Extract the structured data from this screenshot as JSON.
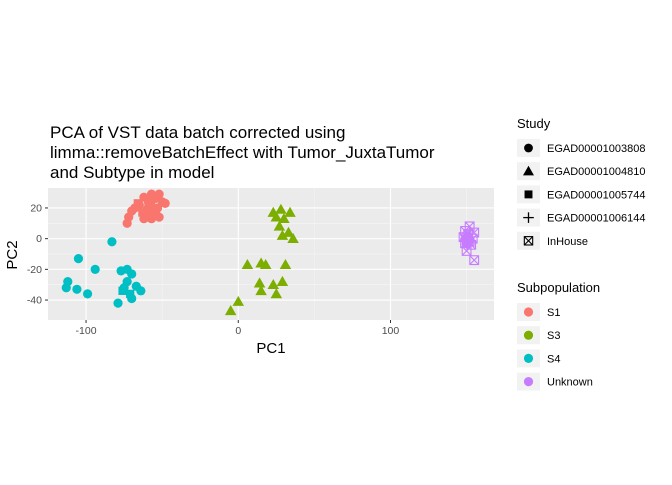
{
  "chart_data": {
    "type": "scatter",
    "title": "PCA of VST data batch corrected using\nlimma::removeBatchEffect with Tumor_JuxtaTumor\nand Subtype in model",
    "xlabel": "PC1",
    "ylabel": "PC2",
    "xlim": [
      -125,
      168
    ],
    "ylim": [
      -53,
      33
    ],
    "xticks": [
      -100,
      0,
      100
    ],
    "yticks": [
      -40,
      -20,
      0,
      20
    ],
    "grid": true,
    "legend_position": "right",
    "legends": [
      {
        "title": "Study",
        "kind": "shape",
        "items": [
          {
            "label": "EGAD00001003808",
            "shape": "circle"
          },
          {
            "label": "EGAD00001004810",
            "shape": "triangle"
          },
          {
            "label": "EGAD00001005744",
            "shape": "square"
          },
          {
            "label": "EGAD00001006144",
            "shape": "plus"
          },
          {
            "label": "InHouse",
            "shape": "boxcross"
          }
        ]
      },
      {
        "title": "Subpopulation",
        "kind": "color",
        "items": [
          {
            "label": "S1",
            "color": "#F8766D"
          },
          {
            "label": "S3",
            "color": "#7CAE00"
          },
          {
            "label": "S4",
            "color": "#00BFC4"
          },
          {
            "label": "Unknown",
            "color": "#C77CFF"
          }
        ]
      }
    ],
    "series": [
      {
        "name": "S1",
        "color": "#F8766D",
        "points": [
          {
            "x": -57,
            "y": 29,
            "shape": "circle"
          },
          {
            "x": -52,
            "y": 29,
            "shape": "circle"
          },
          {
            "x": -62,
            "y": 27,
            "shape": "circle"
          },
          {
            "x": -55,
            "y": 26,
            "shape": "circle"
          },
          {
            "x": -59,
            "y": 24,
            "shape": "circle"
          },
          {
            "x": -50,
            "y": 24,
            "shape": "circle"
          },
          {
            "x": -65,
            "y": 22,
            "shape": "circle"
          },
          {
            "x": -57,
            "y": 21,
            "shape": "circle"
          },
          {
            "x": -53,
            "y": 20,
            "shape": "circle"
          },
          {
            "x": -60,
            "y": 19,
            "shape": "circle"
          },
          {
            "x": -70,
            "y": 18,
            "shape": "circle"
          },
          {
            "x": -56,
            "y": 17,
            "shape": "circle"
          },
          {
            "x": -62,
            "y": 16,
            "shape": "circle"
          },
          {
            "x": -58,
            "y": 15,
            "shape": "circle"
          },
          {
            "x": -72,
            "y": 14,
            "shape": "circle"
          },
          {
            "x": -52,
            "y": 14,
            "shape": "circle"
          },
          {
            "x": -62,
            "y": 13,
            "shape": "circle"
          },
          {
            "x": -57,
            "y": 13,
            "shape": "circle"
          },
          {
            "x": -73,
            "y": 10,
            "shape": "circle"
          },
          {
            "x": -48,
            "y": 23,
            "shape": "circle"
          },
          {
            "x": -66,
            "y": 23,
            "shape": "square"
          },
          {
            "x": -59,
            "y": 22,
            "shape": "square"
          },
          {
            "x": -54,
            "y": 18,
            "shape": "square"
          },
          {
            "x": -63,
            "y": 17,
            "shape": "square"
          },
          {
            "x": -60,
            "y": 14,
            "shape": "square"
          },
          {
            "x": -55,
            "y": 27,
            "shape": "square"
          },
          {
            "x": -68,
            "y": 20,
            "shape": "circle"
          }
        ]
      },
      {
        "name": "S3",
        "color": "#7CAE00",
        "points": [
          {
            "x": 28,
            "y": 19,
            "shape": "triangle"
          },
          {
            "x": 23,
            "y": 17,
            "shape": "triangle"
          },
          {
            "x": 34,
            "y": 17,
            "shape": "triangle"
          },
          {
            "x": 25,
            "y": 14,
            "shape": "triangle"
          },
          {
            "x": 30,
            "y": 13,
            "shape": "triangle"
          },
          {
            "x": 27,
            "y": 8,
            "shape": "triangle"
          },
          {
            "x": 33,
            "y": 4,
            "shape": "triangle"
          },
          {
            "x": 29,
            "y": 2,
            "shape": "triangle"
          },
          {
            "x": 36,
            "y": 0,
            "shape": "triangle"
          },
          {
            "x": 6,
            "y": -17,
            "shape": "triangle"
          },
          {
            "x": 15,
            "y": -16,
            "shape": "triangle"
          },
          {
            "x": 18,
            "y": -17,
            "shape": "triangle"
          },
          {
            "x": 31,
            "y": -17,
            "shape": "triangle"
          },
          {
            "x": 14,
            "y": -29,
            "shape": "triangle"
          },
          {
            "x": 23,
            "y": -30,
            "shape": "triangle"
          },
          {
            "x": 29,
            "y": -28,
            "shape": "triangle"
          },
          {
            "x": 15,
            "y": -34,
            "shape": "triangle"
          },
          {
            "x": 25,
            "y": -36,
            "shape": "triangle"
          },
          {
            "x": 0,
            "y": -41,
            "shape": "triangle"
          },
          {
            "x": -5,
            "y": -47,
            "shape": "triangle"
          }
        ]
      },
      {
        "name": "S4",
        "color": "#00BFC4",
        "points": [
          {
            "x": -83,
            "y": -2,
            "shape": "circle"
          },
          {
            "x": -105,
            "y": -13,
            "shape": "circle"
          },
          {
            "x": -94,
            "y": -20,
            "shape": "circle"
          },
          {
            "x": -73,
            "y": -20,
            "shape": "circle"
          },
          {
            "x": -77,
            "y": -21,
            "shape": "circle"
          },
          {
            "x": -70,
            "y": -23,
            "shape": "circle"
          },
          {
            "x": -112,
            "y": -28,
            "shape": "circle"
          },
          {
            "x": -73,
            "y": -28,
            "shape": "circle"
          },
          {
            "x": -67,
            "y": -31,
            "shape": "circle"
          },
          {
            "x": -106,
            "y": -33,
            "shape": "circle"
          },
          {
            "x": -113,
            "y": -32,
            "shape": "circle"
          },
          {
            "x": -75,
            "y": -32,
            "shape": "circle"
          },
          {
            "x": -64,
            "y": -34,
            "shape": "circle"
          },
          {
            "x": -99,
            "y": -36,
            "shape": "circle"
          },
          {
            "x": -70,
            "y": -39,
            "shape": "circle"
          },
          {
            "x": -79,
            "y": -42,
            "shape": "circle"
          },
          {
            "x": -76,
            "y": -34,
            "shape": "square"
          },
          {
            "x": -71,
            "y": -36,
            "shape": "square"
          }
        ]
      },
      {
        "name": "Unknown",
        "color": "#C77CFF",
        "points": [
          {
            "x": 152,
            "y": 8,
            "shape": "boxcross"
          },
          {
            "x": 149,
            "y": 5,
            "shape": "boxcross"
          },
          {
            "x": 155,
            "y": 4,
            "shape": "boxcross"
          },
          {
            "x": 151,
            "y": 3,
            "shape": "boxcross"
          },
          {
            "x": 148,
            "y": 1,
            "shape": "boxcross"
          },
          {
            "x": 154,
            "y": 0,
            "shape": "boxcross"
          },
          {
            "x": 150,
            "y": -1,
            "shape": "boxcross"
          },
          {
            "x": 152,
            "y": -2,
            "shape": "boxcross"
          },
          {
            "x": 149,
            "y": -3,
            "shape": "boxcross"
          },
          {
            "x": 153,
            "y": -4,
            "shape": "boxcross"
          },
          {
            "x": 150,
            "y": -8,
            "shape": "boxcross"
          },
          {
            "x": 155,
            "y": -14,
            "shape": "boxcross"
          },
          {
            "x": 151,
            "y": 2,
            "shape": "circle"
          },
          {
            "x": 149,
            "y": 0,
            "shape": "circle"
          },
          {
            "x": 152,
            "y": -1,
            "shape": "circle"
          },
          {
            "x": 150,
            "y": -3,
            "shape": "circle"
          }
        ]
      }
    ]
  }
}
